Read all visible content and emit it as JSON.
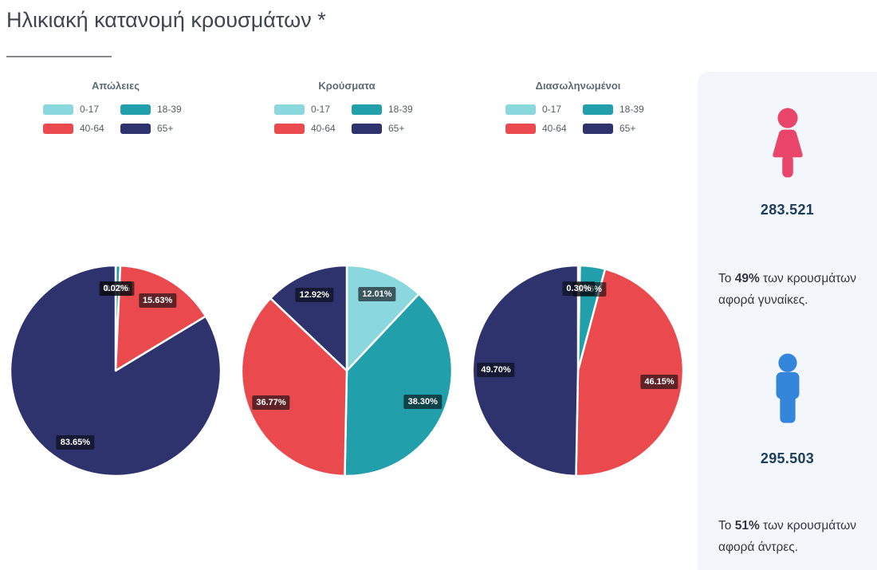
{
  "title": "Ηλικιακή κατανομή κρουσμάτων *",
  "chart_data": [
    {
      "type": "pie",
      "title": "Απώλειες",
      "categories": [
        "0-17",
        "18-39",
        "40-64",
        "65+"
      ],
      "values": [
        0.02,
        0.7,
        15.63,
        83.65
      ],
      "value_labels": [
        "0.02%",
        "0.70%",
        "15.63%",
        "83.65%"
      ],
      "colors": [
        "#8bd7de",
        "#21a0ab",
        "#ea4a4d",
        "#2e336e"
      ],
      "start_angle_deg": 0,
      "direction": "clockwise",
      "legend_position": "top",
      "slice_border_color": "#ffffff"
    },
    {
      "type": "pie",
      "title": "Κρούσματα",
      "categories": [
        "0-17",
        "18-39",
        "40-64",
        "65+"
      ],
      "values": [
        12.01,
        38.3,
        36.77,
        12.92
      ],
      "value_labels": [
        "12.01%",
        "38.30%",
        "36.77%",
        "12.92%"
      ],
      "colors": [
        "#8bd7de",
        "#21a0ab",
        "#ea4a4d",
        "#2e336e"
      ],
      "start_angle_deg": 0,
      "direction": "clockwise",
      "legend_position": "top",
      "slice_border_color": "#ffffff"
    },
    {
      "type": "pie",
      "title": "Διασωληνωμένοι",
      "categories": [
        "0-17",
        "18-39",
        "40-64",
        "65+"
      ],
      "values": [
        0.3,
        3.85,
        46.15,
        49.7
      ],
      "value_labels": [
        "0.30%",
        "3.85%",
        "46.15%",
        "49.70%"
      ],
      "colors": [
        "#8bd7de",
        "#21a0ab",
        "#ea4a4d",
        "#2e336e"
      ],
      "start_angle_deg": 0,
      "direction": "clockwise",
      "legend_position": "top",
      "slice_border_color": "#ffffff"
    }
  ],
  "sidebar": {
    "female": {
      "icon": "female-icon",
      "icon_color": "#e9456b",
      "count": "283.521",
      "text_parts": [
        "Το ",
        "49%",
        " των κρουσμάτων αφορά γυναίκες."
      ]
    },
    "male": {
      "icon": "male-icon",
      "icon_color": "#3486db",
      "count": "295.503",
      "text_parts": [
        "Το ",
        "51%",
        " των κρουσμάτων αφορά άντρες."
      ]
    }
  },
  "colors": {
    "background": "#ffffff",
    "sidebar_background": "#f3f6fb",
    "pie_label_background": "rgba(8,9,16,0.62)",
    "title_text": "#3f4650",
    "legend_title_text": "#5d6a73",
    "legend_label_text": "#555d63",
    "count_text": "#1d3d5c",
    "body_text": "#32383e",
    "age_0_17": "#8bd7de",
    "age_18_39": "#21a0ab",
    "age_40_64": "#ea4a4d",
    "age_65_plus": "#2e336e"
  }
}
